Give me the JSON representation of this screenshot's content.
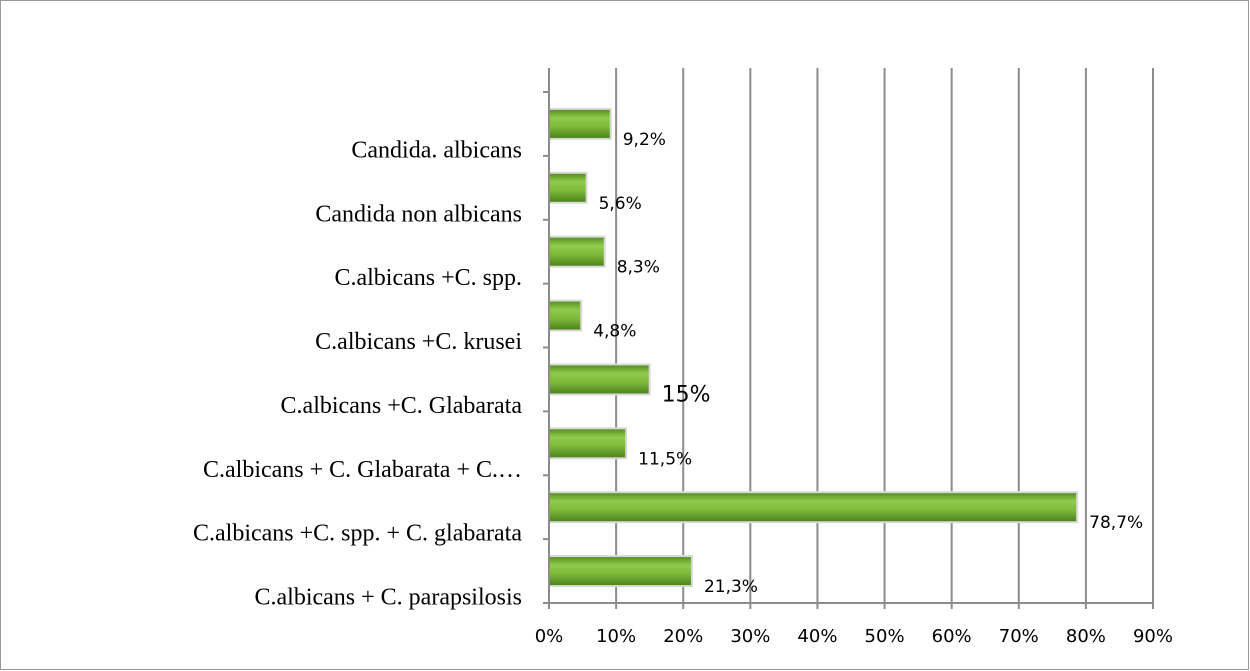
{
  "chart_data": {
    "type": "barh",
    "categories": [
      "Candida. albicans",
      "Candida non albicans",
      "C.albicans +C. spp.",
      "C.albicans +C. krusei",
      "C.albicans +C. Glabarata",
      "C.albicans + C. Glabarata + C.…",
      "C.albicans +C. spp. + C. glabarata",
      "C.albicans + C. parapsilosis"
    ],
    "values": [
      9.2,
      5.6,
      8.3,
      4.8,
      15,
      11.5,
      78.7,
      21.3
    ],
    "value_labels": [
      "9,2%",
      "5,6%",
      "8,3%",
      "4,8%",
      "15%",
      "11,5%",
      "78,7%",
      "21,3%"
    ],
    "color": "#7cb83a",
    "xlim": [
      0,
      90
    ],
    "xticks": [
      {
        "value": 0,
        "label": "0%"
      },
      {
        "value": 10,
        "label": "10%"
      },
      {
        "value": 20,
        "label": "20%"
      },
      {
        "value": 30,
        "label": "30%"
      },
      {
        "value": 40,
        "label": "40%"
      },
      {
        "value": 50,
        "label": "50%"
      },
      {
        "value": 60,
        "label": "60%"
      },
      {
        "value": 70,
        "label": "70%"
      },
      {
        "value": 80,
        "label": "80%"
      },
      {
        "value": 90,
        "label": "90%"
      }
    ],
    "grid": true
  }
}
